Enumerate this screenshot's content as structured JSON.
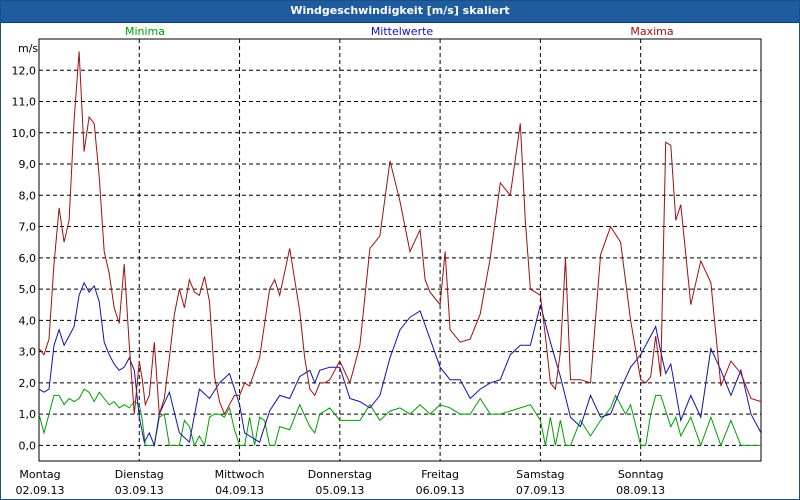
{
  "window": {
    "title": "Windgeschwindigkeit [m/s] skaliert"
  },
  "colors": {
    "minima": "#00a000",
    "mean": "#1010b0",
    "maxima": "#a01010",
    "grid": "#000000"
  },
  "chart_data": {
    "type": "line",
    "title": "Windgeschwindigkeit [m/s] skaliert",
    "ylabel": "m/s",
    "ylim": [
      -0.5,
      13.0
    ],
    "yticks": [
      "0,0",
      "1,0",
      "2,0",
      "3,0",
      "4,0",
      "5,0",
      "6,0",
      "7,0",
      "8,0",
      "9,0",
      "10,0",
      "11,0",
      "12,0"
    ],
    "xlim": [
      0,
      7.2
    ],
    "day_labels": [
      {
        "day": "Montag",
        "date": "02.09.13"
      },
      {
        "day": "Dienstag",
        "date": "03.09.13"
      },
      {
        "day": "Mittwoch",
        "date": "04.09.13"
      },
      {
        "day": "Donnerstag",
        "date": "05.09.13"
      },
      {
        "day": "Freitag",
        "date": "06.09.13"
      },
      {
        "day": "Samstag",
        "date": "07.09.13"
      },
      {
        "day": "Sonntag",
        "date": "08.09.13"
      }
    ],
    "series": [
      {
        "name": "Minima",
        "color": "#00a000",
        "x": [
          0,
          0.05,
          0.1,
          0.15,
          0.2,
          0.25,
          0.3,
          0.35,
          0.4,
          0.45,
          0.5,
          0.55,
          0.6,
          0.65,
          0.7,
          0.75,
          0.8,
          0.85,
          0.9,
          0.95,
          1,
          1.03,
          1.06,
          1.1,
          1.15,
          1.2,
          1.25,
          1.3,
          1.35,
          1.4,
          1.45,
          1.5,
          1.55,
          1.6,
          1.65,
          1.7,
          1.75,
          1.8,
          1.85,
          1.9,
          1.95,
          2,
          2.05,
          2.1,
          2.15,
          2.2,
          2.25,
          2.3,
          2.35,
          2.4,
          2.5,
          2.6,
          2.7,
          2.75,
          2.8,
          2.9,
          3,
          3.1,
          3.2,
          3.3,
          3.4,
          3.5,
          3.6,
          3.7,
          3.8,
          3.9,
          4,
          4.1,
          4.2,
          4.3,
          4.4,
          4.5,
          4.6,
          4.7,
          4.8,
          4.9,
          5,
          5.05,
          5.1,
          5.15,
          5.2,
          5.25,
          5.3,
          5.4,
          5.5,
          5.6,
          5.7,
          5.75,
          5.8,
          5.85,
          5.9,
          6,
          6.05,
          6.1,
          6.15,
          6.2,
          6.3,
          6.35,
          6.4,
          6.5,
          6.6,
          6.7,
          6.8,
          6.9,
          7,
          7.1,
          7.2
        ],
        "y": [
          1.0,
          0.4,
          1.0,
          1.6,
          1.6,
          1.3,
          1.5,
          1.4,
          1.5,
          1.8,
          1.7,
          1.4,
          1.7,
          1.5,
          1.3,
          1.4,
          1.2,
          1.3,
          1.2,
          1.4,
          1.3,
          0.8,
          0.0,
          0.0,
          0.0,
          0.9,
          1.0,
          0.0,
          0.0,
          0.0,
          0.8,
          0.6,
          0.0,
          0.3,
          0.0,
          0.9,
          1.0,
          1.0,
          0.9,
          1.2,
          0.5,
          0.0,
          0.0,
          0.9,
          0.0,
          0.9,
          0.8,
          0.0,
          0.0,
          0.6,
          0.5,
          1.3,
          0.6,
          0.4,
          1.0,
          1.2,
          0.8,
          0.8,
          0.8,
          1.3,
          0.8,
          1.1,
          1.2,
          1.0,
          1.3,
          1.0,
          1.3,
          1.2,
          1.0,
          1.0,
          1.5,
          1.0,
          1.0,
          1.1,
          1.2,
          1.3,
          0.8,
          0.0,
          0.9,
          0.0,
          0.8,
          0.0,
          0.0,
          0.8,
          0.3,
          0.8,
          1.2,
          1.6,
          1.3,
          1.0,
          1.3,
          0.0,
          0.0,
          1.0,
          1.6,
          1.6,
          0.6,
          0.9,
          0.3,
          0.9,
          0.0,
          0.9,
          0.0,
          0.8,
          0.0,
          0.0,
          0.0
        ]
      },
      {
        "name": "Mittelwerte",
        "color": "#1010b0",
        "x": [
          0,
          0.05,
          0.1,
          0.15,
          0.2,
          0.25,
          0.3,
          0.35,
          0.4,
          0.45,
          0.5,
          0.55,
          0.6,
          0.65,
          0.7,
          0.75,
          0.8,
          0.85,
          0.9,
          0.95,
          1,
          1.05,
          1.1,
          1.15,
          1.2,
          1.3,
          1.4,
          1.5,
          1.6,
          1.7,
          1.8,
          1.9,
          2,
          2.05,
          2.1,
          2.2,
          2.3,
          2.4,
          2.5,
          2.6,
          2.7,
          2.75,
          2.8,
          2.9,
          3,
          3.1,
          3.2,
          3.3,
          3.4,
          3.5,
          3.6,
          3.7,
          3.8,
          3.9,
          4,
          4.1,
          4.2,
          4.3,
          4.4,
          4.5,
          4.6,
          4.7,
          4.8,
          4.9,
          5,
          5.1,
          5.2,
          5.3,
          5.4,
          5.5,
          5.6,
          5.7,
          5.8,
          5.9,
          6,
          6.1,
          6.15,
          6.2,
          6.25,
          6.3,
          6.4,
          6.5,
          6.6,
          6.7,
          6.8,
          6.9,
          7,
          7.1,
          7.2
        ],
        "y": [
          1.8,
          1.7,
          1.8,
          3.2,
          3.7,
          3.2,
          3.5,
          3.8,
          4.8,
          5.2,
          4.9,
          5.1,
          4.6,
          3.3,
          2.9,
          2.6,
          2.4,
          2.5,
          2.8,
          2.4,
          0.9,
          0.1,
          0.4,
          0.0,
          1.0,
          1.7,
          0.4,
          0.1,
          1.8,
          1.5,
          2.0,
          2.3,
          1.3,
          0.4,
          0.3,
          0.1,
          1.1,
          1.6,
          1.5,
          2.2,
          2.4,
          2.0,
          2.4,
          2.5,
          2.5,
          1.5,
          1.4,
          1.2,
          1.6,
          2.8,
          3.7,
          4.1,
          4.3,
          3.4,
          2.5,
          2.1,
          2.1,
          1.5,
          1.8,
          2.0,
          2.1,
          2.9,
          3.2,
          3.2,
          4.5,
          3.3,
          2.2,
          0.9,
          0.6,
          1.6,
          0.9,
          1.0,
          1.8,
          2.5,
          2.9,
          3.5,
          3.8,
          3.0,
          2.3,
          2.6,
          0.8,
          1.6,
          0.9,
          3.1,
          2.4,
          1.6,
          2.4,
          1.0,
          0.4
        ]
      },
      {
        "name": "Maxima",
        "color": "#a01010",
        "x": [
          0,
          0.05,
          0.1,
          0.15,
          0.2,
          0.25,
          0.3,
          0.35,
          0.4,
          0.45,
          0.5,
          0.55,
          0.6,
          0.65,
          0.7,
          0.75,
          0.8,
          0.85,
          0.9,
          0.95,
          1,
          1.03,
          1.06,
          1.1,
          1.15,
          1.2,
          1.25,
          1.3,
          1.35,
          1.4,
          1.45,
          1.5,
          1.55,
          1.6,
          1.65,
          1.7,
          1.75,
          1.8,
          1.85,
          1.9,
          1.95,
          2,
          2.05,
          2.1,
          2.2,
          2.3,
          2.35,
          2.4,
          2.5,
          2.6,
          2.65,
          2.7,
          2.75,
          2.8,
          2.85,
          2.9,
          3,
          3.1,
          3.2,
          3.3,
          3.4,
          3.5,
          3.6,
          3.7,
          3.8,
          3.85,
          3.9,
          4,
          4.05,
          4.1,
          4.2,
          4.3,
          4.4,
          4.5,
          4.6,
          4.7,
          4.8,
          4.85,
          4.9,
          5,
          5.05,
          5.1,
          5.15,
          5.2,
          5.25,
          5.3,
          5.4,
          5.5,
          5.6,
          5.7,
          5.8,
          5.9,
          6,
          6.05,
          6.1,
          6.15,
          6.2,
          6.25,
          6.3,
          6.35,
          6.4,
          6.5,
          6.6,
          6.7,
          6.8,
          6.9,
          7,
          7.1,
          7.2
        ],
        "y": [
          3.1,
          2.9,
          3.4,
          5.8,
          7.6,
          6.5,
          7.2,
          10.4,
          12.6,
          9.4,
          10.5,
          10.3,
          8.6,
          6.2,
          5.5,
          4.4,
          3.9,
          5.8,
          3.2,
          1.0,
          2.7,
          2.1,
          1.3,
          1.6,
          3.3,
          1.0,
          1.5,
          2.8,
          4.2,
          5.0,
          4.4,
          5.3,
          4.9,
          4.8,
          5.4,
          4.6,
          2.2,
          1.4,
          1.0,
          1.3,
          1.6,
          1.6,
          2.0,
          1.9,
          2.8,
          5.0,
          5.3,
          4.8,
          6.3,
          4.3,
          2.8,
          1.8,
          1.6,
          2.0,
          2.0,
          2.1,
          2.7,
          2.0,
          3.2,
          6.3,
          6.7,
          9.1,
          7.8,
          6.2,
          6.9,
          5.3,
          4.9,
          4.5,
          6.2,
          3.7,
          3.3,
          3.4,
          4.2,
          6.0,
          8.4,
          8.0,
          10.3,
          7.2,
          5.0,
          4.8,
          3.5,
          2.0,
          1.8,
          3.0,
          6.0,
          2.1,
          2.1,
          2.0,
          6.1,
          7.0,
          6.5,
          4.0,
          2.1,
          2.0,
          2.2,
          3.5,
          2.2,
          9.7,
          9.6,
          7.2,
          7.7,
          4.5,
          5.9,
          5.2,
          1.9,
          2.7,
          2.3,
          1.5,
          1.4
        ]
      }
    ]
  }
}
